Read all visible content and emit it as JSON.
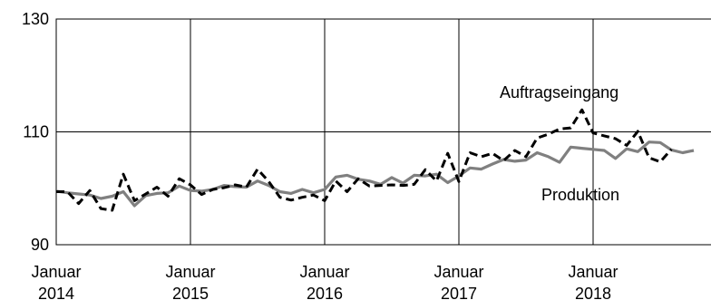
{
  "chart_data": {
    "type": "line",
    "title": "",
    "xlabel": "",
    "ylabel": "",
    "ylim": [
      90,
      130
    ],
    "y_ticks": [
      "90",
      "110",
      "130"
    ],
    "x_ticks": [
      {
        "line1": "Januar",
        "line2": "2014"
      },
      {
        "line1": "Januar",
        "line2": "2015"
      },
      {
        "line1": "Januar",
        "line2": "2016"
      },
      {
        "line1": "Januar",
        "line2": "2017"
      },
      {
        "line1": "Januar",
        "line2": "2018"
      }
    ],
    "x_range_months": [
      0,
      60
    ],
    "grid": true,
    "annotations": {
      "orders_label": "Auftragseingang",
      "production_label": "Produktion"
    },
    "series": [
      {
        "label_key": "orders_label",
        "color": "#000000",
        "dashed": true,
        "values": [
          99.4,
          99.4,
          97.3,
          99.6,
          96.4,
          96.1,
          102.5,
          97.8,
          99.0,
          100.2,
          98.6,
          101.7,
          100.6,
          98.9,
          99.8,
          100.1,
          100.6,
          100.2,
          103.4,
          101.2,
          98.4,
          97.9,
          98.4,
          98.8,
          97.8,
          101.3,
          99.4,
          101.7,
          100.4,
          100.5,
          100.6,
          100.5,
          100.7,
          103.3,
          101.3,
          106.2,
          101.2,
          106.3,
          105.6,
          106.2,
          104.9,
          106.7,
          105.6,
          108.9,
          109.6,
          110.5,
          110.7,
          113.9,
          109.8,
          109.3,
          108.8,
          107.6,
          110.1,
          105.4,
          104.7,
          106.9
        ]
      },
      {
        "label_key": "production_label",
        "color": "#808080",
        "dashed": false,
        "values": [
          99.5,
          99.2,
          99.0,
          98.8,
          98.2,
          98.6,
          99.4,
          96.9,
          98.7,
          99.1,
          99.2,
          100.4,
          99.6,
          99.5,
          99.8,
          100.5,
          100.3,
          100.2,
          101.3,
          100.5,
          99.4,
          99.1,
          99.8,
          99.2,
          99.8,
          102.0,
          102.3,
          101.6,
          101.3,
          100.7,
          101.9,
          100.9,
          102.3,
          102.2,
          102.5,
          101.0,
          102.2,
          103.6,
          103.4,
          104.3,
          105.1,
          104.8,
          105.0,
          106.3,
          105.6,
          104.6,
          107.3,
          107.1,
          106.9,
          106.7,
          105.3,
          107.0,
          106.5,
          108.2,
          108.1,
          106.8,
          106.3,
          106.7
        ]
      }
    ]
  }
}
